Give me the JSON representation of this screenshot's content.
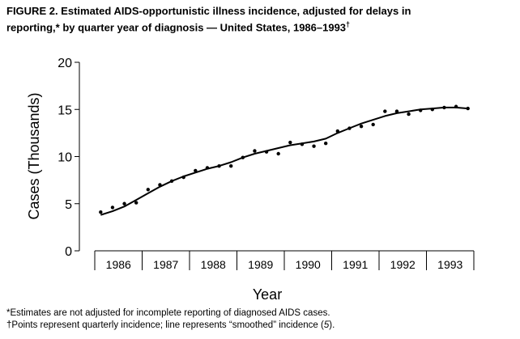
{
  "figure": {
    "title_line1": "FIGURE 2. Estimated AIDS-opportunistic illness incidence, adjusted for delays in",
    "title_line2": "reporting,* by quarter year of diagnosis — United States, 1986–1993",
    "title_dagger": "†"
  },
  "chart_data": {
    "type": "scatter",
    "title": "FIGURE 2. Estimated AIDS-opportunistic illness incidence, adjusted for delays in reporting,* by quarter year of diagnosis — United States, 1986–1993†",
    "xlabel": "Year",
    "ylabel": "Cases (Thousands)",
    "ylim": [
      0,
      20
    ],
    "yticks": [
      0,
      5,
      10,
      15,
      20
    ],
    "categories": [
      "1986",
      "1987",
      "1988",
      "1989",
      "1990",
      "1991",
      "1992",
      "1993"
    ],
    "grid": false,
    "series": [
      {
        "style": "points",
        "quarters": [
          "1986 Q1",
          "1986 Q2",
          "1986 Q3",
          "1986 Q4",
          "1987 Q1",
          "1987 Q2",
          "1987 Q3",
          "1987 Q4",
          "1988 Q1",
          "1988 Q2",
          "1988 Q3",
          "1988 Q4",
          "1989 Q1",
          "1989 Q2",
          "1989 Q3",
          "1989 Q4",
          "1990 Q1",
          "1990 Q2",
          "1990 Q3",
          "1990 Q4",
          "1991 Q1",
          "1991 Q2",
          "1991 Q3",
          "1991 Q4",
          "1992 Q1",
          "1992 Q2",
          "1992 Q3",
          "1992 Q4",
          "1993 Q1",
          "1993 Q2",
          "1993 Q3",
          "1993 Q4"
        ],
        "values": [
          4.1,
          4.6,
          5.0,
          5.1,
          6.5,
          7.0,
          7.4,
          7.8,
          8.5,
          8.8,
          9.0,
          9.0,
          9.9,
          10.6,
          10.5,
          10.3,
          11.5,
          11.3,
          11.1,
          11.4,
          12.7,
          13.0,
          13.2,
          13.4,
          14.8,
          14.8,
          14.5,
          14.9,
          15.0,
          15.2,
          15.3,
          15.1
        ]
      },
      {
        "style": "smoothed-line",
        "quarters": [
          "1986 Q1",
          "1986 Q2",
          "1986 Q3",
          "1986 Q4",
          "1987 Q1",
          "1987 Q2",
          "1987 Q3",
          "1987 Q4",
          "1988 Q1",
          "1988 Q2",
          "1988 Q3",
          "1988 Q4",
          "1989 Q1",
          "1989 Q2",
          "1989 Q3",
          "1989 Q4",
          "1990 Q1",
          "1990 Q2",
          "1990 Q3",
          "1990 Q4",
          "1991 Q1",
          "1991 Q2",
          "1991 Q3",
          "1991 Q4",
          "1992 Q1",
          "1992 Q2",
          "1992 Q3",
          "1992 Q4",
          "1993 Q1",
          "1993 Q2",
          "1993 Q3",
          "1993 Q4"
        ],
        "values": [
          3.8,
          4.2,
          4.7,
          5.4,
          6.1,
          6.8,
          7.4,
          7.9,
          8.3,
          8.7,
          9.0,
          9.4,
          9.9,
          10.3,
          10.6,
          10.9,
          11.2,
          11.4,
          11.6,
          11.9,
          12.5,
          13.0,
          13.5,
          13.9,
          14.3,
          14.6,
          14.8,
          15.0,
          15.1,
          15.2,
          15.2,
          15.1
        ]
      }
    ]
  },
  "footnotes": {
    "note1": "*Estimates are not adjusted for incomplete reporting of diagnosed AIDS cases.",
    "note2_before": "†Points represent quarterly incidence; line represents “smoothed” incidence (",
    "note2_ref": "5",
    "note2_after": ")."
  }
}
